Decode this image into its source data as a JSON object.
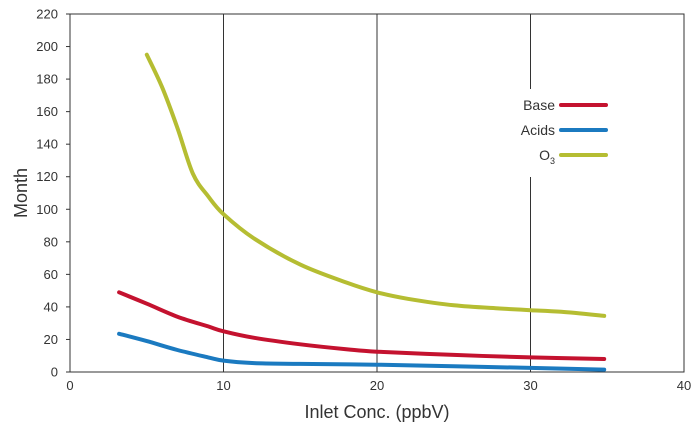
{
  "chart_data": {
    "type": "line",
    "xlabel": "Inlet Conc. (ppbV)",
    "ylabel": "Month",
    "xlim": [
      0,
      40
    ],
    "ylim": [
      0,
      220
    ],
    "x_ticks": [
      "0",
      "10",
      "20",
      "30",
      "40"
    ],
    "y_ticks": [
      "0",
      "20",
      "40",
      "60",
      "80",
      "100",
      "120",
      "140",
      "160",
      "180",
      "200",
      "220"
    ],
    "grid": "vertical",
    "legend_position": "right",
    "series": [
      {
        "name": "Base",
        "color": "#c4122f",
        "points": [
          [
            3.2,
            49
          ],
          [
            5,
            42
          ],
          [
            7,
            34
          ],
          [
            9,
            28
          ],
          [
            10,
            25
          ],
          [
            12,
            21
          ],
          [
            15,
            17
          ],
          [
            18,
            14
          ],
          [
            20,
            12.5
          ],
          [
            25,
            10.5
          ],
          [
            30,
            9
          ],
          [
            34.8,
            8
          ]
        ]
      },
      {
        "name": "Acids",
        "color": "#1b7ac0",
        "points": [
          [
            3.2,
            23.5
          ],
          [
            5,
            19
          ],
          [
            7,
            13.5
          ],
          [
            9,
            9
          ],
          [
            10,
            7
          ],
          [
            12,
            5.5
          ],
          [
            15,
            5
          ],
          [
            20,
            4.5
          ],
          [
            25,
            3.5
          ],
          [
            30,
            2.5
          ],
          [
            34.8,
            1.5
          ]
        ]
      },
      {
        "name": "O",
        "subscript": "3",
        "color": "#b5bd32",
        "points": [
          [
            5,
            195
          ],
          [
            6,
            175
          ],
          [
            7,
            150
          ],
          [
            8,
            122
          ],
          [
            9,
            108
          ],
          [
            10,
            97
          ],
          [
            12,
            82
          ],
          [
            15,
            66
          ],
          [
            18,
            55
          ],
          [
            20,
            49
          ],
          [
            22,
            45
          ],
          [
            25,
            41
          ],
          [
            28,
            39
          ],
          [
            30,
            38
          ],
          [
            32,
            37
          ],
          [
            34.8,
            34.5
          ]
        ]
      }
    ]
  }
}
